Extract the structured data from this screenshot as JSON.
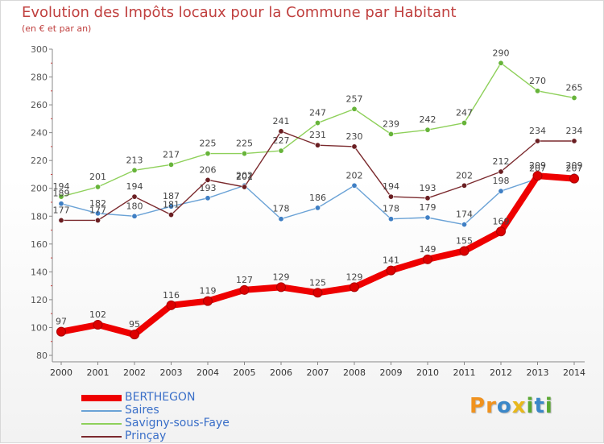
{
  "title": "Evolution des Impôts locaux pour la Commune par Habitant",
  "subtitle": "(en € et par an)",
  "logo": {
    "letters": [
      "P",
      "r",
      "o",
      "x",
      "i",
      "t",
      "i"
    ],
    "colors": [
      "#f0921e",
      "#f0921e",
      "#3a87c8",
      "#e8b81b",
      "#5aa832",
      "#3a87c8",
      "#5aa832"
    ]
  },
  "chart_data": {
    "type": "line",
    "x": [
      2000,
      2001,
      2002,
      2003,
      2004,
      2005,
      2006,
      2007,
      2008,
      2009,
      2010,
      2011,
      2012,
      2013,
      2014
    ],
    "xlabels": [
      "2000",
      "2001",
      "2002",
      "2003",
      "2004",
      "2005",
      "2006",
      "2007",
      "2008",
      "2009",
      "2010",
      "2011",
      "2012",
      "2013",
      "2014"
    ],
    "ylim": [
      80,
      300
    ],
    "yticks": [
      80,
      100,
      120,
      140,
      160,
      180,
      200,
      220,
      240,
      260,
      280,
      300
    ],
    "grid": false,
    "legend_position": "bottom-left",
    "series": [
      {
        "name": "Savigny-sous-Faye",
        "color": "#8ed05a",
        "marker": "#67b43a",
        "values": [
          194,
          201,
          213,
          217,
          225,
          225,
          227,
          247,
          257,
          239,
          242,
          247,
          290,
          270,
          265
        ]
      },
      {
        "name": "Saires",
        "color": "#6aa2d6",
        "marker": "#3f7fc4",
        "values": [
          189,
          182,
          180,
          187,
          193,
          202,
          178,
          186,
          202,
          178,
          179,
          174,
          198,
          207,
          209
        ]
      },
      {
        "name": "Prinçay",
        "color": "#7b2a2e",
        "marker": "#6a1e22",
        "values": [
          177,
          177,
          194,
          181,
          206,
          201,
          241,
          231,
          230,
          194,
          193,
          202,
          212,
          234,
          234
        ]
      },
      {
        "name": "BERTHEGON",
        "color": "#ee0000",
        "marker": "#dd0000",
        "values": [
          97,
          102,
          95,
          116,
          119,
          127,
          129,
          125,
          129,
          141,
          149,
          155,
          169,
          209,
          207
        ]
      }
    ]
  },
  "legend": [
    {
      "name": "BERTHEGON",
      "color": "#ee0000",
      "text_color": "#3a6fc8",
      "thick": true
    },
    {
      "name": "Saires",
      "color": "#6aa2d6",
      "text_color": "#3a6fc8",
      "thick": false
    },
    {
      "name": "Savigny-sous-Faye",
      "color": "#8ed05a",
      "text_color": "#3a6fc8",
      "thick": false
    },
    {
      "name": "Prinçay",
      "color": "#7b2a2e",
      "text_color": "#3a6fc8",
      "thick": false
    }
  ]
}
